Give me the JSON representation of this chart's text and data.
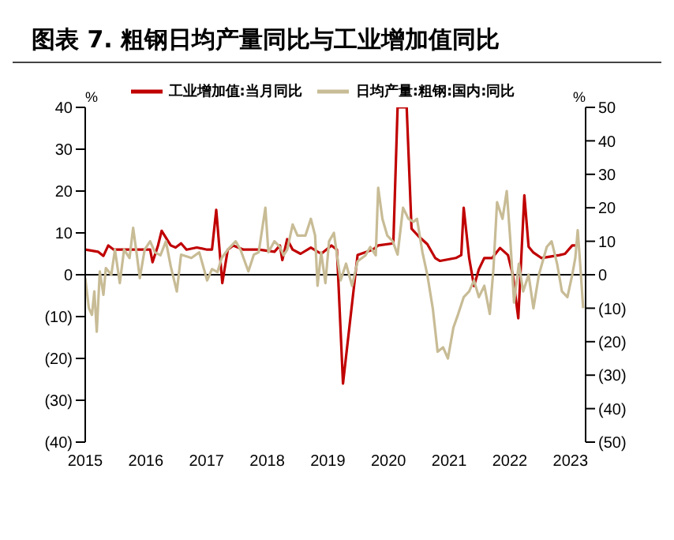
{
  "chart_data": {
    "type": "line",
    "title": "图表 7. 粗钢日均产量同比与工业增加值同比",
    "ylabel": "%",
    "y2label": "%",
    "xlim": [
      2015,
      2023.25
    ],
    "xticks": [
      2015,
      2016,
      2017,
      2018,
      2019,
      2020,
      2021,
      2022,
      2023
    ],
    "ylim": [
      -40,
      40
    ],
    "yticks": [
      {
        "value": -40,
        "label": "(40)"
      },
      {
        "value": -30,
        "label": "(30)"
      },
      {
        "value": -20,
        "label": "(20)"
      },
      {
        "value": -10,
        "label": "(10)"
      },
      0,
      10,
      20,
      30,
      40
    ],
    "y2lim": [
      -50,
      50
    ],
    "y2ticks": [
      {
        "value": -50,
        "label": "(50)"
      },
      {
        "value": -40,
        "label": "(40)"
      },
      {
        "value": -30,
        "label": "(30)"
      },
      {
        "value": -20,
        "label": "(20)"
      },
      {
        "value": -10,
        "label": "(10)"
      },
      0,
      10,
      20,
      30,
      40,
      50
    ],
    "legend": "top",
    "marker": "none",
    "line_style": "solid",
    "ref_lines": [
      {
        "axis": "y",
        "value": 0,
        "color": "#000000"
      }
    ],
    "series": [
      {
        "name": "工业增加值:当月同比",
        "color": "#c00000",
        "x": [
          2015.0,
          2015.21,
          2015.3,
          2015.38,
          2015.47,
          2015.81,
          2016.07,
          2016.11,
          2016.2,
          2016.26,
          2016.41,
          2016.49,
          2016.58,
          2016.67,
          2016.84,
          2017.01,
          2017.09,
          2017.16,
          2017.26,
          2017.35,
          2017.44,
          2017.61,
          2017.86,
          2018.12,
          2018.21,
          2018.25,
          2018.33,
          2018.42,
          2018.55,
          2018.72,
          2018.89,
          2019.06,
          2019.15,
          2019.25,
          2019.49,
          2019.74,
          2019.83,
          2020.08,
          2020.15,
          2020.3,
          2020.38,
          2020.51,
          2020.64,
          2020.77,
          2020.85,
          2021.11,
          2021.2,
          2021.24,
          2021.33,
          2021.41,
          2021.49,
          2021.58,
          2021.71,
          2021.84,
          2021.97,
          2022.05,
          2022.14,
          2022.18,
          2022.24,
          2022.31,
          2022.39,
          2022.52,
          2022.82,
          2022.91,
          2023.03,
          2023.08
        ],
        "values": [
          6,
          5.5,
          4.5,
          7,
          6,
          6,
          6,
          3,
          7,
          10.5,
          7,
          6.5,
          7.5,
          6,
          6.5,
          6,
          6,
          15.5,
          -2,
          6,
          7,
          6,
          6,
          5.5,
          7,
          3.5,
          8.5,
          6,
          5,
          6.5,
          5,
          7,
          6,
          -26,
          4.7,
          6,
          7,
          7.5,
          40,
          40,
          11,
          9,
          7.3,
          4,
          3.3,
          4,
          4.7,
          16,
          4,
          -2.7,
          1.3,
          4,
          4,
          6.4,
          4.7,
          0,
          -10.4,
          1.3,
          19,
          6.7,
          5.3,
          4,
          4.7,
          5,
          7,
          7
        ]
      },
      {
        "name": "日均产量:粗钢:国内:同比",
        "color": "#c8bc96",
        "axis": "y2",
        "x": [
          2015.0,
          2015.06,
          2015.11,
          2015.15,
          2015.19,
          2015.24,
          2015.3,
          2015.34,
          2015.43,
          2015.49,
          2015.57,
          2015.64,
          2015.73,
          2015.79,
          2015.85,
          2015.9,
          2015.98,
          2016.07,
          2016.15,
          2016.24,
          2016.33,
          2016.41,
          2016.51,
          2016.58,
          2016.75,
          2016.88,
          2017.01,
          2017.09,
          2017.18,
          2017.25,
          2017.35,
          2017.48,
          2017.56,
          2017.69,
          2017.78,
          2017.86,
          2017.97,
          2018.02,
          2018.12,
          2018.21,
          2018.27,
          2018.33,
          2018.42,
          2018.5,
          2018.63,
          2018.72,
          2018.79,
          2018.83,
          2018.89,
          2018.96,
          2019.02,
          2019.1,
          2019.21,
          2019.3,
          2019.4,
          2019.49,
          2019.62,
          2019.7,
          2019.79,
          2019.83,
          2019.9,
          2019.98,
          2020.07,
          2020.15,
          2020.24,
          2020.33,
          2020.41,
          2020.47,
          2020.56,
          2020.64,
          2020.73,
          2020.81,
          2020.9,
          2020.98,
          2021.07,
          2021.15,
          2021.24,
          2021.33,
          2021.41,
          2021.49,
          2021.58,
          2021.67,
          2021.73,
          2021.79,
          2021.88,
          2021.95,
          2022.01,
          2022.07,
          2022.15,
          2022.22,
          2022.31,
          2022.39,
          2022.48,
          2022.61,
          2022.69,
          2022.78,
          2022.86,
          2022.95,
          2023.03,
          2023.08,
          2023.12,
          2023.16,
          2023.21
        ],
        "values": [
          -1,
          -10,
          -12,
          -5,
          -17,
          1,
          -6,
          2,
          0,
          7.5,
          -2.5,
          7.5,
          5,
          14,
          6,
          -1,
          7.5,
          10,
          6.7,
          5.8,
          10,
          2.5,
          -5,
          6,
          5,
          6.7,
          -1.7,
          1.7,
          0.8,
          5,
          7.5,
          10,
          7.5,
          1,
          6,
          6.7,
          20,
          6.7,
          10,
          8.3,
          5.8,
          7.5,
          15,
          11.7,
          11.7,
          16.7,
          11.7,
          -3.3,
          6.7,
          -2.5,
          10,
          12.5,
          -1.7,
          3.3,
          -3.3,
          4,
          5.8,
          8.3,
          5.8,
          26,
          16.7,
          11.7,
          10,
          6,
          20,
          16.7,
          15.8,
          16.7,
          6.7,
          0,
          -10,
          -23,
          -21.7,
          -25,
          -15.8,
          -11.7,
          -6.7,
          -5,
          -1.7,
          -6.7,
          -3.3,
          -11.7,
          1.7,
          21.7,
          16.7,
          25,
          10,
          -8.3,
          3.3,
          -5,
          0,
          -10,
          0,
          8.3,
          10,
          3.3,
          -5,
          -6.7,
          0,
          5,
          13.3,
          3.3,
          -10
        ]
      }
    ]
  }
}
